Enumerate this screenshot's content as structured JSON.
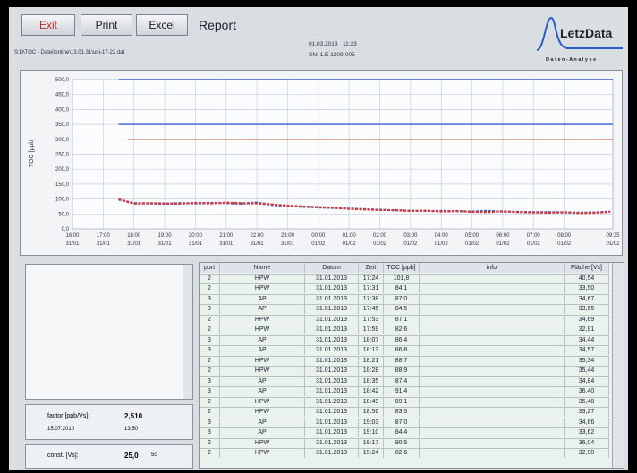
{
  "toolbar": {
    "buttons": [
      "Exit",
      "Print",
      "Excel"
    ],
    "title": "Report"
  },
  "file_path": "S:D\\TOC - Datei\\online\\13.01.31\\uni-17-22.dat",
  "info": {
    "datetime": "01.03.2013   11:23",
    "serial": "SN: 1.E 1209-005"
  },
  "logo": {
    "name": "LetzData",
    "tagline": "D a t e n - A n a l y s e"
  },
  "chart_data": {
    "type": "line",
    "ylabel": "TOC [ppb]",
    "xlim": [
      0,
      17.583
    ],
    "ylim": [
      0,
      500
    ],
    "xticks": [
      {
        "value": 0,
        "label": "16:00",
        "sublabel": "31/01"
      },
      {
        "value": 1,
        "label": "17:00",
        "sublabel": "31/01"
      },
      {
        "value": 2,
        "label": "18:00",
        "sublabel": "31/01"
      },
      {
        "value": 3,
        "label": "19:00",
        "sublabel": "31/01"
      },
      {
        "value": 4,
        "label": "20:00",
        "sublabel": "31/01"
      },
      {
        "value": 5,
        "label": "21:00",
        "sublabel": "31/01"
      },
      {
        "value": 6,
        "label": "22:00",
        "sublabel": "31/01"
      },
      {
        "value": 7,
        "label": "23:00",
        "sublabel": "31/01"
      },
      {
        "value": 8,
        "label": "00:00",
        "sublabel": "01/02"
      },
      {
        "value": 9,
        "label": "01:00",
        "sublabel": "01/02"
      },
      {
        "value": 10,
        "label": "02:00",
        "sublabel": "01/02"
      },
      {
        "value": 11,
        "label": "03:00",
        "sublabel": "01/02"
      },
      {
        "value": 12,
        "label": "04:00",
        "sublabel": "01/02"
      },
      {
        "value": 13,
        "label": "05:00",
        "sublabel": "01/02"
      },
      {
        "value": 14,
        "label": "06:00",
        "sublabel": "01/02"
      },
      {
        "value": 15,
        "label": "07:00",
        "sublabel": "01/02"
      },
      {
        "value": 16,
        "label": "08:00",
        "sublabel": "01/02"
      },
      {
        "value": 17.583,
        "label": "09:35",
        "sublabel": "01/02"
      }
    ],
    "yticks": [
      {
        "value": 0,
        "label": "0,0"
      },
      {
        "value": 50,
        "label": "50,0"
      },
      {
        "value": 100,
        "label": "100,0"
      },
      {
        "value": 150,
        "label": "150,0"
      },
      {
        "value": 200,
        "label": "200,0"
      },
      {
        "value": 250,
        "label": "250,0"
      },
      {
        "value": 300,
        "label": "300,0"
      },
      {
        "value": 350,
        "label": "350,0"
      },
      {
        "value": 400,
        "label": "400,0"
      },
      {
        "value": 450,
        "label": "450,0"
      },
      {
        "value": 500,
        "label": "500,0"
      }
    ],
    "grid": true,
    "reference_lines": [
      {
        "value": 500,
        "color": "#3b5bd0",
        "start": 1.5
      },
      {
        "value": 350,
        "color": "#3b5bd0",
        "start": 1.5
      },
      {
        "value": 300,
        "color": "#d04848",
        "start": 1.8
      }
    ],
    "x": [
      1.5,
      2,
      2.5,
      3,
      3.5,
      4,
      4.5,
      5,
      5.5,
      6,
      6.5,
      7,
      7.5,
      8,
      8.5,
      9,
      9.5,
      10,
      10.5,
      11,
      11.5,
      12,
      12.5,
      13,
      13.5,
      14,
      14.5,
      15,
      15.5,
      16,
      16.5,
      17,
      17.5
    ],
    "series": [
      {
        "color": "#3050d8",
        "values": [
          98,
          86,
          85,
          84,
          86,
          85,
          87,
          86,
          84,
          88,
          80,
          76,
          74,
          72,
          70,
          68,
          66,
          64,
          62,
          61,
          60,
          60,
          59,
          58,
          60,
          58,
          57,
          56,
          56,
          55,
          54,
          55,
          58
        ]
      },
      {
        "color": "#d83838",
        "values": [
          100,
          84,
          86,
          85,
          84,
          87,
          85,
          88,
          86,
          85,
          82,
          78,
          75,
          73,
          71,
          67,
          65,
          63,
          63,
          60,
          61,
          58,
          60,
          57,
          56,
          59,
          56,
          55,
          54,
          56,
          53,
          54,
          57
        ]
      }
    ]
  },
  "factor": {
    "label": "factor [ppb/Vs]:",
    "value": "2,510",
    "date": "15.07.2010",
    "time": "13:50"
  },
  "const": {
    "label": "const. [Vs]:",
    "value": "25,0",
    "extra": "50"
  },
  "table": {
    "columns": [
      "port",
      "Name",
      "Datum",
      "Zeit",
      "TOC [ppb]",
      "info",
      "Fläche [Vs]"
    ],
    "rows": [
      {
        "port": "2",
        "name": "HPW",
        "datum": "31.01.2013",
        "zeit": "17:24",
        "toc": "101,8",
        "flaeche": "40,54"
      },
      {
        "port": "2",
        "name": "HPW",
        "datum": "31.01.2013",
        "zeit": "17:31",
        "toc": "84,1",
        "flaeche": "33,50"
      },
      {
        "port": "3",
        "name": "AP",
        "datum": "31.01.2013",
        "zeit": "17:38",
        "toc": "87,0",
        "flaeche": "34,67"
      },
      {
        "port": "3",
        "name": "AP",
        "datum": "31.01.2013",
        "zeit": "17:45",
        "toc": "84,5",
        "flaeche": "33,65"
      },
      {
        "port": "2",
        "name": "HPW",
        "datum": "31.01.2013",
        "zeit": "17:53",
        "toc": "87,1",
        "flaeche": "34,69"
      },
      {
        "port": "2",
        "name": "HPW",
        "datum": "31.01.2013",
        "zeit": "17:59",
        "toc": "82,6",
        "flaeche": "32,91"
      },
      {
        "port": "3",
        "name": "AP",
        "datum": "31.01.2013",
        "zeit": "18:07",
        "toc": "86,4",
        "flaeche": "34,44"
      },
      {
        "port": "3",
        "name": "AP",
        "datum": "31.01.2013",
        "zeit": "18:13",
        "toc": "86,8",
        "flaeche": "34,57"
      },
      {
        "port": "2",
        "name": "HPW",
        "datum": "31.01.2013",
        "zeit": "18:21",
        "toc": "88,7",
        "flaeche": "35,34"
      },
      {
        "port": "2",
        "name": "HPW",
        "datum": "31.01.2013",
        "zeit": "18:28",
        "toc": "88,9",
        "flaeche": "35,44"
      },
      {
        "port": "3",
        "name": "AP",
        "datum": "31.01.2013",
        "zeit": "18:35",
        "toc": "87,4",
        "flaeche": "34,84"
      },
      {
        "port": "3",
        "name": "AP",
        "datum": "31.01.2013",
        "zeit": "18:42",
        "toc": "91,4",
        "flaeche": "36,40"
      },
      {
        "port": "2",
        "name": "HPW",
        "datum": "31.01.2013",
        "zeit": "18:49",
        "toc": "89,1",
        "flaeche": "35,48"
      },
      {
        "port": "2",
        "name": "HPW",
        "datum": "31.01.2013",
        "zeit": "18:56",
        "toc": "83,5",
        "flaeche": "33,27"
      },
      {
        "port": "3",
        "name": "AP",
        "datum": "31.01.2013",
        "zeit": "19:03",
        "toc": "87,0",
        "flaeche": "34,66"
      },
      {
        "port": "3",
        "name": "AP",
        "datum": "31.01.2013",
        "zeit": "19:10",
        "toc": "84,4",
        "flaeche": "33,62"
      },
      {
        "port": "2",
        "name": "HPW",
        "datum": "31.01.2013",
        "zeit": "19:17",
        "toc": "90,5",
        "flaeche": "36,04"
      },
      {
        "port": "2",
        "name": "HPW",
        "datum": "31.01.2013",
        "zeit": "19:24",
        "toc": "82,6",
        "flaeche": "32,90"
      }
    ]
  }
}
